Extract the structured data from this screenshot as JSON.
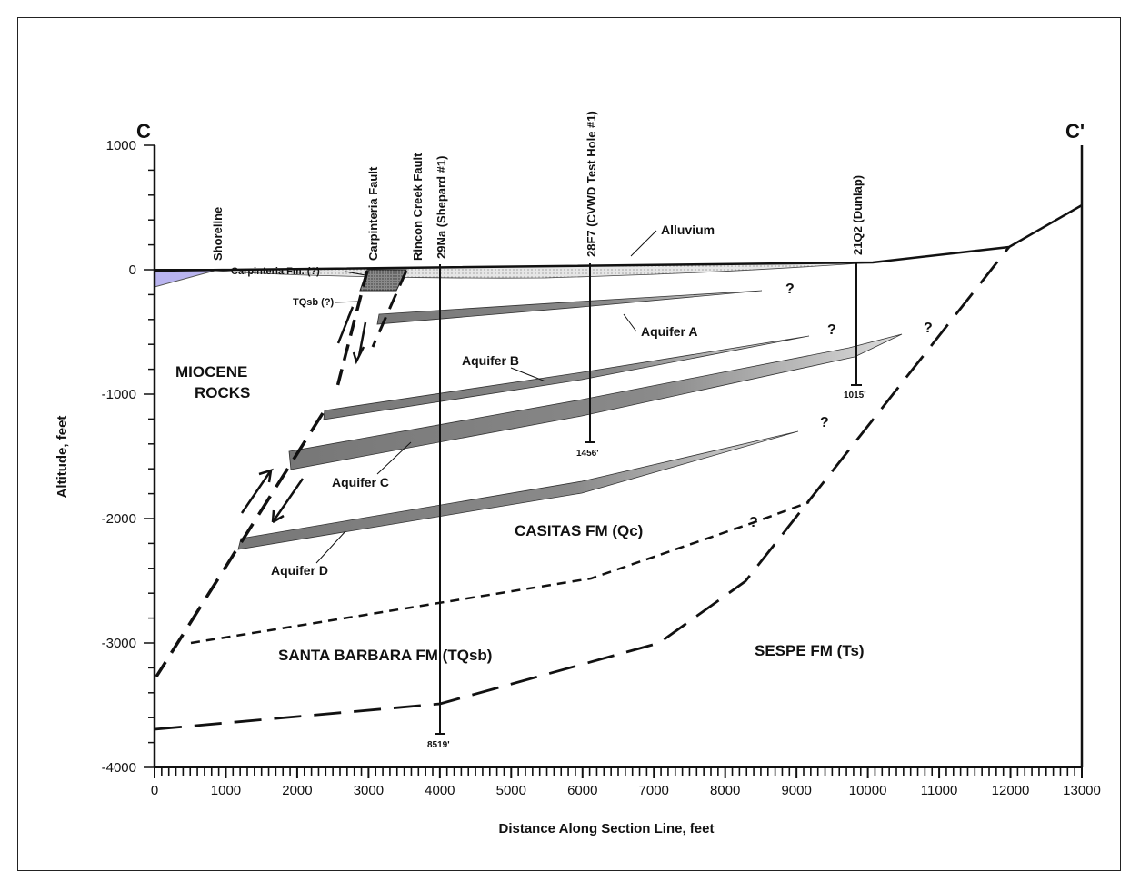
{
  "section": {
    "start_label": "C",
    "end_label": "C'",
    "x_axis": {
      "title": "Distance Along Section Line, feet",
      "ticks": [
        0,
        1000,
        2000,
        3000,
        4000,
        5000,
        6000,
        7000,
        8000,
        9000,
        10000,
        11000,
        12000,
        13000
      ],
      "range": [
        0,
        13000
      ]
    },
    "y_axis": {
      "title": "Altitude, feet",
      "ticks": [
        1000,
        0,
        -1000,
        -2000,
        -3000,
        -4000
      ],
      "range": [
        -4000,
        1000
      ]
    }
  },
  "labels": {
    "shoreline": "Shoreline",
    "carpinteria_fm": "Carpinteria Fm. (?)",
    "carpinteria_fault": "Carpinteria Fault",
    "rincon_fault": "Rincon Creek Fault",
    "alluvium": "Alluvium",
    "tqsb": "TQsb (?)",
    "miocene_1": "MIOCENE",
    "miocene_2": "ROCKS",
    "aquifer_a": "Aquifer A",
    "aquifer_b": "Aquifer B",
    "aquifer_c": "Aquifer C",
    "aquifer_d": "Aquifer D",
    "casitas": "CASITAS FM (Qc)",
    "santa_barbara": "SANTA BARBARA FM (TQsb)",
    "sespe": "SESPE FM (Ts)",
    "query": "?"
  },
  "wells": [
    {
      "name": "29Na (Shepard #1)",
      "x": 4000,
      "depth_label": "8519'"
    },
    {
      "name": "28F7 (CVWD Test Hole #1)",
      "x": 6050,
      "depth_label": "1456'"
    },
    {
      "name": "21Q2 (Dunlap)",
      "x": 9850,
      "depth_label": "1015'"
    }
  ],
  "colors": {
    "line": "#111111",
    "aquifer": "#7f7f7f",
    "aquifer_tip": "#c8c8c8",
    "alluvium": "#dcdcdc",
    "ocean": "#b9b4ef"
  }
}
